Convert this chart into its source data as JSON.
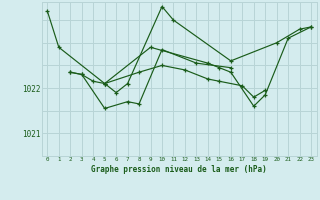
{
  "title": "Graphe pression niveau de la mer (hPa)",
  "background_color": "#d4ecee",
  "grid_color": "#b8d4d6",
  "line_color": "#1a5c1a",
  "marker_color": "#1a5c1a",
  "xlim": [
    -0.5,
    23.5
  ],
  "ylim": [
    1020.5,
    1023.9
  ],
  "yticks": [
    1021,
    1022
  ],
  "xticks": [
    0,
    1,
    2,
    3,
    4,
    5,
    6,
    7,
    8,
    9,
    10,
    11,
    12,
    13,
    14,
    15,
    16,
    17,
    18,
    19,
    20,
    21,
    22,
    23
  ],
  "grid_y_lines": [
    1021,
    1021.5,
    1022,
    1022.5,
    1023,
    1023.5
  ],
  "series": [
    {
      "x": [
        0,
        1,
        5,
        6,
        7,
        10,
        11,
        16,
        20,
        22,
        23
      ],
      "y": [
        1023.7,
        1022.9,
        1022.1,
        1021.9,
        1022.1,
        1023.8,
        1023.5,
        1022.6,
        1023.0,
        1023.3,
        1023.35
      ]
    },
    {
      "x": [
        2,
        3,
        4,
        5,
        8,
        10,
        12,
        14,
        15,
        17,
        18,
        19
      ],
      "y": [
        1022.35,
        1022.3,
        1022.15,
        1022.1,
        1022.35,
        1022.5,
        1022.4,
        1022.2,
        1022.15,
        1022.05,
        1021.8,
        1021.95
      ]
    },
    {
      "x": [
        2,
        3,
        5,
        7,
        8,
        10,
        13,
        16
      ],
      "y": [
        1022.35,
        1022.3,
        1021.55,
        1021.7,
        1021.65,
        1022.85,
        1022.55,
        1022.45
      ]
    },
    {
      "x": [
        5,
        9,
        14,
        15,
        16,
        18,
        19,
        21,
        23
      ],
      "y": [
        1022.1,
        1022.9,
        1022.55,
        1022.45,
        1022.35,
        1021.6,
        1021.85,
        1023.1,
        1023.35
      ]
    }
  ]
}
